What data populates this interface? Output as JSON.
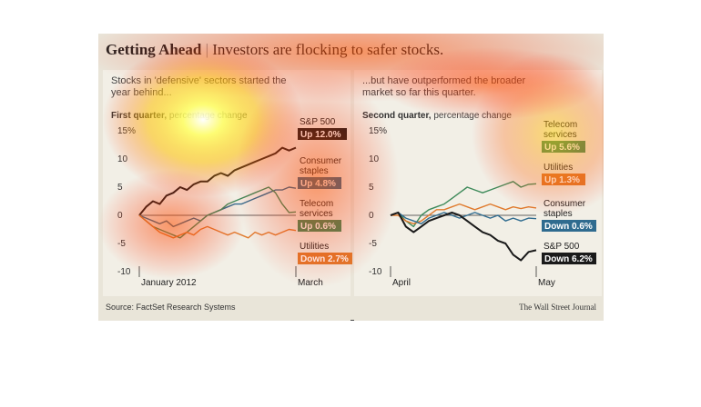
{
  "header": {
    "title_bold": "Getting Ahead",
    "separator": "|",
    "title_rest": "Investors are flocking to safer stocks."
  },
  "footer": {
    "source": "Source: FactSet Research Systems",
    "publisher": "The Wall Street Journal"
  },
  "colors": {
    "sp500": "#1a1a1a",
    "consumer_staples": "#2f6b8f",
    "telecom": "#3e8a5a",
    "utilities": "#e07b2e",
    "background": "#e9e5d9",
    "panel": "#f2efe6"
  },
  "chart_data": [
    {
      "type": "line",
      "subtitle": "Stocks in 'defensive' sectors started the year behind...",
      "period_label": "First quarter,",
      "period_unit": "percentage change",
      "ylim": [
        -10,
        15
      ],
      "yticks": [
        "15%",
        "10",
        "5",
        "0",
        "-5",
        "-10"
      ],
      "xticks": [
        "January 2012",
        "March"
      ],
      "series": [
        {
          "name": "S&P 500",
          "status": "Up 12.0%",
          "color": "#1a1a1a",
          "values": [
            0,
            1.5,
            2.5,
            2,
            3.5,
            4,
            5,
            4.5,
            5.5,
            6,
            6,
            7,
            7.5,
            7,
            8,
            8.5,
            9,
            9.5,
            10,
            10.5,
            11,
            12,
            11.5,
            12
          ]
        },
        {
          "name": "Consumer staples",
          "status": "Up 4.8%",
          "color": "#2f6b8f",
          "values": [
            0,
            -0.5,
            -1,
            -1.5,
            -1,
            -2,
            -1.5,
            -1,
            -0.5,
            -1,
            0,
            0.5,
            1,
            1.5,
            2,
            2,
            2.5,
            3,
            3.5,
            4,
            4.5,
            4.5,
            5,
            4.8
          ]
        },
        {
          "name": "Telecom services",
          "status": "Up 0.6%",
          "color": "#3e8a5a",
          "values": [
            0,
            -1,
            -2,
            -2.5,
            -3,
            -3.5,
            -4,
            -3,
            -2,
            -1,
            0,
            0.5,
            1,
            2,
            2.5,
            3,
            3.5,
            4,
            4.5,
            5,
            4,
            2,
            0.5,
            0.6
          ]
        },
        {
          "name": "Utilities",
          "status": "Down 2.7%",
          "color": "#e07b2e",
          "values": [
            0,
            -1,
            -2,
            -3,
            -3.5,
            -4,
            -3.5,
            -3,
            -3.5,
            -2.5,
            -2,
            -2.5,
            -3,
            -3.5,
            -3,
            -3.5,
            -4,
            -3,
            -3.5,
            -3,
            -3.5,
            -3,
            -2.5,
            -2.7
          ]
        }
      ]
    },
    {
      "type": "line",
      "subtitle": "...but have outperformed the broader market so far this quarter.",
      "period_label": "Second quarter,",
      "period_unit": "percentage change",
      "ylim": [
        -10,
        15
      ],
      "yticks": [
        "15%",
        "10",
        "5",
        "0",
        "-5",
        "-10"
      ],
      "xticks": [
        "April",
        "May"
      ],
      "series": [
        {
          "name": "Telecom services",
          "status": "Up 5.6%",
          "color": "#3e8a5a",
          "values": [
            0,
            0.5,
            -1,
            -2,
            0,
            1,
            1.5,
            2,
            3,
            4,
            5,
            4.5,
            4,
            4.5,
            5,
            5.5,
            6,
            5,
            5.5,
            5.6
          ]
        },
        {
          "name": "Utilities",
          "status": "Up 1.3%",
          "color": "#e07b2e",
          "values": [
            0,
            0,
            -1,
            -1.5,
            -1,
            0,
            1,
            1,
            1.5,
            2,
            1.5,
            1,
            1.5,
            2,
            1.5,
            1,
            1.5,
            1.2,
            1.5,
            1.3
          ]
        },
        {
          "name": "Consumer staples",
          "status": "Down 0.6%",
          "color": "#2f6b8f",
          "values": [
            0,
            0.5,
            -0.5,
            -1,
            -1.5,
            -0.5,
            0,
            0.5,
            0,
            -0.5,
            0,
            0.5,
            0,
            -0.5,
            0,
            -1,
            -0.5,
            -1,
            -0.5,
            -0.6
          ]
        },
        {
          "name": "S&P 500",
          "status": "Down 6.2%",
          "color": "#1a1a1a",
          "values": [
            0,
            0.5,
            -2,
            -3,
            -2,
            -1,
            -0.5,
            0,
            0.5,
            0,
            -1,
            -2,
            -3,
            -3.5,
            -4.5,
            -5,
            -7,
            -8,
            -6.5,
            -6.2
          ]
        }
      ]
    }
  ]
}
